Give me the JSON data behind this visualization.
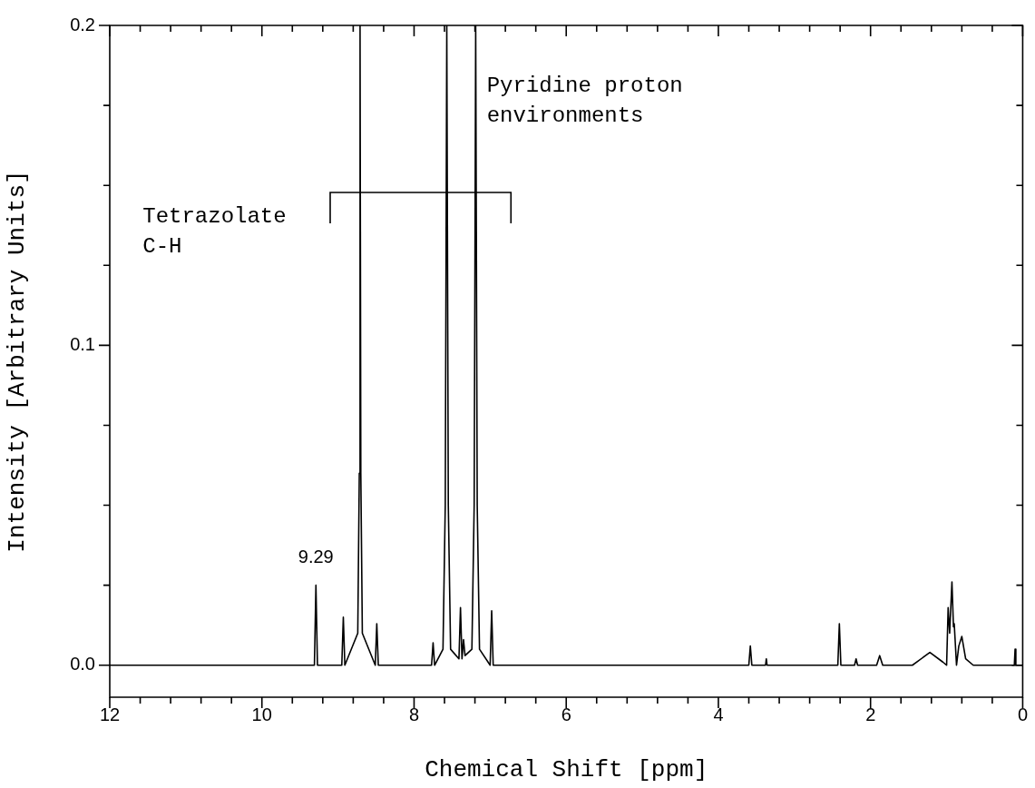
{
  "chart_data": {
    "type": "line",
    "xlabel": "Chemical Shift [ppm]",
    "ylabel": "Intensity [Arbitrary Units]",
    "x": [
      12,
      9.31,
      9.29,
      9.27,
      8.95,
      8.93,
      8.91,
      8.74,
      8.72,
      8.71,
      8.7,
      8.68,
      8.51,
      8.49,
      8.47,
      7.77,
      7.75,
      7.73,
      7.62,
      7.59,
      7.57,
      7.55,
      7.52,
      7.41,
      7.39,
      7.37,
      7.35,
      7.33,
      7.24,
      7.21,
      7.19,
      7.17,
      7.14,
      7.0,
      6.98,
      6.96,
      3.6,
      3.58,
      3.56,
      3.38,
      3.37,
      3.36,
      2.43,
      2.41,
      2.39,
      2.21,
      2.19,
      2.17,
      1.92,
      1.88,
      1.84,
      1.45,
      1.22,
      1.05,
      1.0,
      0.98,
      0.96,
      0.93,
      0.91,
      0.9,
      0.87,
      0.84,
      0.8,
      0.75,
      0.65,
      0.11,
      0.1,
      0.09,
      0
    ],
    "series": [
      {
        "color": "#000000",
        "values": [
          0,
          0,
          0.025,
          0,
          0,
          0.015,
          0,
          0.01,
          0.06,
          0.2,
          0.06,
          0.01,
          0,
          0.013,
          0,
          0,
          0.007,
          0,
          0.005,
          0.05,
          0.2,
          0.05,
          0.005,
          0.002,
          0.018,
          0.002,
          0.008,
          0.003,
          0.005,
          0.05,
          0.2,
          0.05,
          0.005,
          0,
          0.017,
          0,
          0,
          0.006,
          0,
          0,
          0.002,
          0,
          0,
          0.013,
          0,
          0,
          0.002,
          0,
          0,
          0.003,
          0,
          0,
          0.004,
          0.001,
          0,
          0.018,
          0.01,
          0.026,
          0.012,
          0.013,
          0,
          0.006,
          0.009,
          0.002,
          0,
          0,
          0.005,
          0,
          0
        ]
      }
    ],
    "xlim": [
      12,
      0
    ],
    "ylim": [
      -0.01,
      0.2
    ],
    "xticks": [
      12,
      {
        "value": 11.6,
        "label": null
      },
      {
        "value": 11.2,
        "label": null
      },
      {
        "value": 10.8,
        "label": null
      },
      {
        "value": 10.4,
        "label": null
      },
      10,
      {
        "value": 9.6,
        "label": null
      },
      {
        "value": 9.2,
        "label": null
      },
      {
        "value": 8.8,
        "label": null
      },
      {
        "value": 8.4,
        "label": null
      },
      8,
      {
        "value": 7.6,
        "label": null
      },
      {
        "value": 7.2,
        "label": null
      },
      {
        "value": 6.8,
        "label": null
      },
      {
        "value": 6.4,
        "label": null
      },
      6,
      {
        "value": 5.6,
        "label": null
      },
      {
        "value": 5.2,
        "label": null
      },
      {
        "value": 4.8,
        "label": null
      },
      {
        "value": 4.4,
        "label": null
      },
      4,
      {
        "value": 3.6,
        "label": null
      },
      {
        "value": 3.2,
        "label": null
      },
      {
        "value": 2.8,
        "label": null
      },
      {
        "value": 2.4,
        "label": null
      },
      2,
      {
        "value": 1.6,
        "label": null
      },
      {
        "value": 1.2,
        "label": null
      },
      {
        "value": 0.8,
        "label": null
      },
      {
        "value": 0.4,
        "label": null
      },
      0
    ],
    "yticks": [
      {
        "value": 0,
        "label": "0.0"
      },
      {
        "value": 0.025,
        "label": null
      },
      {
        "value": 0.05,
        "label": null
      },
      {
        "value": 0.075,
        "label": null
      },
      {
        "value": 0.1,
        "label": "0.1"
      },
      {
        "value": 0.125,
        "label": null
      },
      {
        "value": 0.15,
        "label": null
      },
      {
        "value": 0.175,
        "label": null
      },
      {
        "value": 0.2,
        "label": "0.2"
      }
    ],
    "grid": false,
    "legend": false,
    "marker": "none",
    "line_style": "solid",
    "annotations": [
      "Pyridine proton\nenvironments",
      "Tetrazolate\nC-H",
      {
        "text": "9.29",
        "x": 9.29,
        "y": 0.025
      }
    ]
  }
}
